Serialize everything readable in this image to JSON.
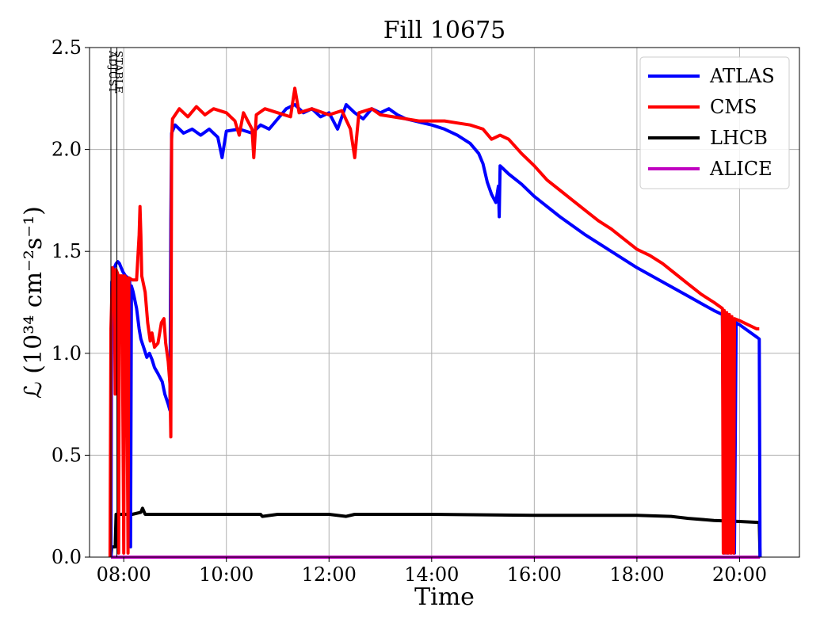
{
  "chart_data": {
    "type": "line",
    "title": "Fill 10675",
    "xlabel": "Time",
    "ylabel": "ℒ (10³⁴ cm⁻²s⁻¹)",
    "xlim": [
      "07:20",
      "21:10"
    ],
    "ylim": [
      0,
      2.5
    ],
    "grid": true,
    "legend_position": "top-right",
    "x_ticks": [
      "08:00",
      "10:00",
      "12:00",
      "14:00",
      "16:00",
      "18:00",
      "20:00"
    ],
    "y_ticks": [
      "0.0",
      "0.5",
      "1.0",
      "1.5",
      "2.0",
      "2.5"
    ],
    "markers": [
      {
        "label": "ADJUST",
        "time": "07:45"
      },
      {
        "label": "STABLE",
        "time": "07:52"
      }
    ],
    "series": [
      {
        "name": "ATLAS",
        "color": "#0000ff",
        "points": [
          [
            "07:45",
            0.0
          ],
          [
            "07:46",
            1.35
          ],
          [
            "07:49",
            1.42
          ],
          [
            "07:51",
            1.44
          ],
          [
            "07:53",
            1.45
          ],
          [
            "07:55",
            1.44
          ],
          [
            "07:57",
            1.42
          ],
          [
            "07:59",
            1.4
          ],
          [
            "08:02",
            1.38
          ],
          [
            "08:05",
            1.37
          ],
          [
            "08:07",
            1.36
          ],
          [
            "08:08",
            0.05
          ],
          [
            "08:09",
            1.33
          ],
          [
            "08:11",
            1.3
          ],
          [
            "08:15",
            1.22
          ],
          [
            "08:18",
            1.12
          ],
          [
            "08:20",
            1.07
          ],
          [
            "08:24",
            1.02
          ],
          [
            "08:27",
            0.98
          ],
          [
            "08:30",
            1.0
          ],
          [
            "08:33",
            0.97
          ],
          [
            "08:36",
            0.93
          ],
          [
            "08:40",
            0.9
          ],
          [
            "08:45",
            0.86
          ],
          [
            "08:48",
            0.8
          ],
          [
            "08:52",
            0.75
          ],
          [
            "08:54",
            0.72
          ],
          [
            "08:55",
            1.65
          ],
          [
            "08:56",
            2.08
          ],
          [
            "09:00",
            2.12
          ],
          [
            "09:10",
            2.08
          ],
          [
            "09:20",
            2.1
          ],
          [
            "09:30",
            2.07
          ],
          [
            "09:40",
            2.1
          ],
          [
            "09:50",
            2.06
          ],
          [
            "09:55",
            1.96
          ],
          [
            "10:00",
            2.09
          ],
          [
            "10:15",
            2.1
          ],
          [
            "10:30",
            2.08
          ],
          [
            "10:40",
            2.12
          ],
          [
            "10:50",
            2.1
          ],
          [
            "11:00",
            2.15
          ],
          [
            "11:10",
            2.2
          ],
          [
            "11:20",
            2.22
          ],
          [
            "11:30",
            2.18
          ],
          [
            "11:40",
            2.2
          ],
          [
            "11:50",
            2.16
          ],
          [
            "12:00",
            2.18
          ],
          [
            "12:10",
            2.1
          ],
          [
            "12:20",
            2.22
          ],
          [
            "12:30",
            2.18
          ],
          [
            "12:40",
            2.15
          ],
          [
            "12:50",
            2.2
          ],
          [
            "13:00",
            2.18
          ],
          [
            "13:10",
            2.2
          ],
          [
            "13:20",
            2.17
          ],
          [
            "13:30",
            2.15
          ],
          [
            "13:40",
            2.14
          ],
          [
            "13:50",
            2.13
          ],
          [
            "14:00",
            2.12
          ],
          [
            "14:15",
            2.1
          ],
          [
            "14:30",
            2.07
          ],
          [
            "14:45",
            2.03
          ],
          [
            "14:55",
            1.98
          ],
          [
            "15:00",
            1.93
          ],
          [
            "15:05",
            1.84
          ],
          [
            "15:10",
            1.78
          ],
          [
            "15:15",
            1.74
          ],
          [
            "15:18",
            1.82
          ],
          [
            "15:19",
            1.67
          ],
          [
            "15:20",
            1.92
          ],
          [
            "15:30",
            1.88
          ],
          [
            "15:45",
            1.83
          ],
          [
            "16:00",
            1.77
          ],
          [
            "16:30",
            1.67
          ],
          [
            "17:00",
            1.58
          ],
          [
            "17:30",
            1.5
          ],
          [
            "18:00",
            1.42
          ],
          [
            "18:30",
            1.35
          ],
          [
            "19:00",
            1.28
          ],
          [
            "19:30",
            1.21
          ],
          [
            "19:40",
            1.19
          ],
          [
            "19:42",
            0.02
          ],
          [
            "19:44",
            1.18
          ],
          [
            "19:46",
            0.02
          ],
          [
            "19:48",
            1.17
          ],
          [
            "19:50",
            0.02
          ],
          [
            "19:52",
            1.16
          ],
          [
            "19:54",
            0.02
          ],
          [
            "19:56",
            1.15
          ],
          [
            "20:00",
            1.14
          ],
          [
            "20:10",
            1.11
          ],
          [
            "20:20",
            1.08
          ],
          [
            "20:23",
            1.07
          ],
          [
            "20:24",
            0.0
          ]
        ]
      },
      {
        "name": "CMS",
        "color": "#ff0000",
        "points": [
          [
            "07:44",
            0.0
          ],
          [
            "07:45",
            1.12
          ],
          [
            "07:47",
            1.42
          ],
          [
            "07:49",
            1.4
          ],
          [
            "07:50",
            0.8
          ],
          [
            "07:51",
            1.41
          ],
          [
            "07:53",
            1.39
          ],
          [
            "07:54",
            0.02
          ],
          [
            "07:55",
            1.38
          ],
          [
            "07:58",
            1.38
          ],
          [
            "08:00",
            0.02
          ],
          [
            "08:01",
            1.38
          ],
          [
            "08:03",
            1.37
          ],
          [
            "08:05",
            0.02
          ],
          [
            "08:06",
            1.37
          ],
          [
            "08:10",
            1.36
          ],
          [
            "08:15",
            1.36
          ],
          [
            "08:18",
            1.58
          ],
          [
            "08:19",
            1.72
          ],
          [
            "08:20",
            1.58
          ],
          [
            "08:21",
            1.38
          ],
          [
            "08:25",
            1.3
          ],
          [
            "08:28",
            1.15
          ],
          [
            "08:31",
            1.06
          ],
          [
            "08:33",
            1.1
          ],
          [
            "08:36",
            1.03
          ],
          [
            "08:40",
            1.05
          ],
          [
            "08:44",
            1.15
          ],
          [
            "08:47",
            1.17
          ],
          [
            "08:49",
            1.05
          ],
          [
            "08:52",
            0.96
          ],
          [
            "08:54",
            0.85
          ],
          [
            "08:55",
            0.59
          ],
          [
            "08:56",
            2.05
          ],
          [
            "08:57",
            2.15
          ],
          [
            "09:05",
            2.2
          ],
          [
            "09:15",
            2.16
          ],
          [
            "09:25",
            2.21
          ],
          [
            "09:35",
            2.17
          ],
          [
            "09:45",
            2.2
          ],
          [
            "10:00",
            2.18
          ],
          [
            "10:10",
            2.14
          ],
          [
            "10:15",
            2.07
          ],
          [
            "10:20",
            2.18
          ],
          [
            "10:30",
            2.1
          ],
          [
            "10:32",
            1.96
          ],
          [
            "10:35",
            2.17
          ],
          [
            "10:45",
            2.2
          ],
          [
            "11:00",
            2.18
          ],
          [
            "11:15",
            2.16
          ],
          [
            "11:20",
            2.3
          ],
          [
            "11:25",
            2.18
          ],
          [
            "11:40",
            2.2
          ],
          [
            "12:00",
            2.17
          ],
          [
            "12:15",
            2.19
          ],
          [
            "12:25",
            2.1
          ],
          [
            "12:30",
            1.96
          ],
          [
            "12:35",
            2.18
          ],
          [
            "12:50",
            2.2
          ],
          [
            "13:00",
            2.17
          ],
          [
            "13:15",
            2.16
          ],
          [
            "13:30",
            2.15
          ],
          [
            "13:45",
            2.14
          ],
          [
            "14:00",
            2.14
          ],
          [
            "14:15",
            2.14
          ],
          [
            "14:30",
            2.13
          ],
          [
            "14:45",
            2.12
          ],
          [
            "15:00",
            2.1
          ],
          [
            "15:10",
            2.05
          ],
          [
            "15:20",
            2.07
          ],
          [
            "15:30",
            2.05
          ],
          [
            "15:45",
            1.98
          ],
          [
            "16:00",
            1.92
          ],
          [
            "16:15",
            1.85
          ],
          [
            "16:30",
            1.8
          ],
          [
            "16:45",
            1.75
          ],
          [
            "17:00",
            1.7
          ],
          [
            "17:15",
            1.65
          ],
          [
            "17:30",
            1.61
          ],
          [
            "17:45",
            1.56
          ],
          [
            "18:00",
            1.51
          ],
          [
            "18:15",
            1.48
          ],
          [
            "18:30",
            1.44
          ],
          [
            "18:45",
            1.39
          ],
          [
            "19:00",
            1.34
          ],
          [
            "19:15",
            1.29
          ],
          [
            "19:30",
            1.25
          ],
          [
            "19:40",
            1.22
          ],
          [
            "19:41",
            0.02
          ],
          [
            "19:42",
            1.21
          ],
          [
            "19:44",
            0.02
          ],
          [
            "19:45",
            1.2
          ],
          [
            "19:47",
            0.02
          ],
          [
            "19:48",
            1.19
          ],
          [
            "19:50",
            0.02
          ],
          [
            "19:51",
            1.18
          ],
          [
            "19:53",
            0.02
          ],
          [
            "19:54",
            1.17
          ],
          [
            "20:00",
            1.16
          ],
          [
            "20:10",
            1.14
          ],
          [
            "20:20",
            1.12
          ],
          [
            "20:23",
            1.12
          ]
        ]
      },
      {
        "name": "LHCB",
        "color": "#000000",
        "points": [
          [
            "07:45",
            0.0
          ],
          [
            "07:46",
            0.05
          ],
          [
            "07:50",
            0.05
          ],
          [
            "07:51",
            0.21
          ],
          [
            "08:00",
            0.21
          ],
          [
            "08:10",
            0.21
          ],
          [
            "08:20",
            0.22
          ],
          [
            "08:22",
            0.24
          ],
          [
            "08:25",
            0.21
          ],
          [
            "09:00",
            0.21
          ],
          [
            "10:00",
            0.21
          ],
          [
            "10:40",
            0.21
          ],
          [
            "10:42",
            0.2
          ],
          [
            "11:00",
            0.21
          ],
          [
            "12:00",
            0.21
          ],
          [
            "12:20",
            0.2
          ],
          [
            "12:30",
            0.21
          ],
          [
            "14:00",
            0.21
          ],
          [
            "16:00",
            0.205
          ],
          [
            "18:00",
            0.205
          ],
          [
            "18:40",
            0.2
          ],
          [
            "19:00",
            0.19
          ],
          [
            "19:30",
            0.18
          ],
          [
            "20:00",
            0.175
          ],
          [
            "20:23",
            0.17
          ],
          [
            "20:24",
            0.0
          ]
        ]
      },
      {
        "name": "ALICE",
        "color": "#c000c0",
        "points": [
          [
            "07:45",
            0.0
          ],
          [
            "20:24",
            0.0
          ]
        ]
      }
    ]
  }
}
